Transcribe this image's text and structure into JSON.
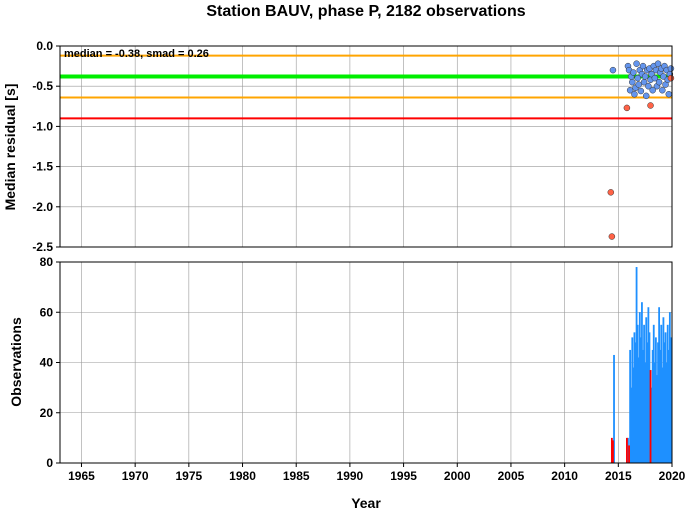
{
  "chart_data": [
    {
      "type": "scatter",
      "title": "Station BAUV, phase P, 2182 observations",
      "xlabel": "",
      "ylabel": "Median residual [s]",
      "annotation": "median = -0.38, smad = 0.26",
      "xlim": [
        1963,
        2020
      ],
      "ylim": [
        -2.5,
        0.0
      ],
      "yticks": [
        "0.0",
        "-0.5",
        "-1.0",
        "-1.5",
        "-2.0",
        "-2.5"
      ],
      "ytick_values": [
        0.0,
        -0.5,
        -1.0,
        -1.5,
        -2.0,
        -2.5
      ],
      "grid": true,
      "hlines": [
        {
          "y": -0.12,
          "color": "#ffa500"
        },
        {
          "y": -0.38,
          "color": "#00ee00"
        },
        {
          "y": -0.64,
          "color": "#ffa500"
        },
        {
          "y": -0.9,
          "color": "#ff0000"
        }
      ],
      "series": [
        {
          "color": "#6495ed",
          "points": [
            [
              2014.5,
              -0.3
            ],
            [
              2015.9,
              -0.25
            ],
            [
              2016.0,
              -0.3
            ],
            [
              2016.1,
              -0.55
            ],
            [
              2016.2,
              -0.38
            ],
            [
              2016.3,
              -0.45
            ],
            [
              2016.4,
              -0.33
            ],
            [
              2016.5,
              -0.6
            ],
            [
              2016.6,
              -0.52
            ],
            [
              2016.7,
              -0.22
            ],
            [
              2016.8,
              -0.4
            ],
            [
              2016.9,
              -0.48
            ],
            [
              2017.0,
              -0.3
            ],
            [
              2017.1,
              -0.56
            ],
            [
              2017.2,
              -0.35
            ],
            [
              2017.3,
              -0.25
            ],
            [
              2017.4,
              -0.45
            ],
            [
              2017.5,
              -0.38
            ],
            [
              2017.6,
              -0.62
            ],
            [
              2017.7,
              -0.3
            ],
            [
              2017.8,
              -0.5
            ],
            [
              2017.9,
              -0.28
            ],
            [
              2018.0,
              -0.42
            ],
            [
              2018.1,
              -0.35
            ],
            [
              2018.2,
              -0.55
            ],
            [
              2018.3,
              -0.25
            ],
            [
              2018.4,
              -0.4
            ],
            [
              2018.5,
              -0.3
            ],
            [
              2018.6,
              -0.5
            ],
            [
              2018.7,
              -0.22
            ],
            [
              2018.8,
              -0.45
            ],
            [
              2018.9,
              -0.33
            ],
            [
              2019.0,
              -0.28
            ],
            [
              2019.1,
              -0.55
            ],
            [
              2019.2,
              -0.38
            ],
            [
              2019.3,
              -0.25
            ],
            [
              2019.4,
              -0.48
            ],
            [
              2019.5,
              -0.3
            ],
            [
              2019.6,
              -0.42
            ],
            [
              2019.7,
              -0.6
            ],
            [
              2019.8,
              -0.35
            ],
            [
              2019.9,
              -0.28
            ]
          ]
        },
        {
          "color": "#ff6347",
          "points": [
            [
              2014.3,
              -1.82
            ],
            [
              2014.4,
              -2.37
            ],
            [
              2015.8,
              -0.77
            ],
            [
              2018.0,
              -0.74
            ],
            [
              2019.9,
              -0.4
            ]
          ]
        }
      ]
    },
    {
      "type": "bar",
      "title": "",
      "xlabel": "Year",
      "ylabel": "Observations",
      "xlim": [
        1963,
        2020
      ],
      "ylim": [
        0,
        80
      ],
      "xticks": [
        "1965",
        "1970",
        "1975",
        "1980",
        "1985",
        "1990",
        "1995",
        "2000",
        "2005",
        "2010",
        "2015",
        "2020"
      ],
      "xtick_values": [
        1965,
        1970,
        1975,
        1980,
        1985,
        1990,
        1995,
        2000,
        2005,
        2010,
        2015,
        2020
      ],
      "yticks": [
        "0",
        "20",
        "40",
        "60",
        "80"
      ],
      "ytick_values": [
        0,
        20,
        40,
        60,
        80
      ],
      "grid": true,
      "series": [
        {
          "color": "#1e90ff",
          "bars": [
            [
              2014.6,
              43
            ],
            [
              2015.9,
              10
            ],
            [
              2016.1,
              45
            ],
            [
              2016.2,
              30
            ],
            [
              2016.3,
              50
            ],
            [
              2016.4,
              38
            ],
            [
              2016.5,
              52
            ],
            [
              2016.6,
              48
            ],
            [
              2016.7,
              78
            ],
            [
              2016.8,
              55
            ],
            [
              2016.9,
              42
            ],
            [
              2017.0,
              60
            ],
            [
              2017.1,
              50
            ],
            [
              2017.2,
              64
            ],
            [
              2017.3,
              45
            ],
            [
              2017.4,
              55
            ],
            [
              2017.5,
              40
            ],
            [
              2017.6,
              58
            ],
            [
              2017.7,
              48
            ],
            [
              2017.8,
              62
            ],
            [
              2017.9,
              52
            ],
            [
              2018.1,
              30
            ],
            [
              2018.2,
              45
            ],
            [
              2018.3,
              55
            ],
            [
              2018.4,
              40
            ],
            [
              2018.5,
              50
            ],
            [
              2018.6,
              35
            ],
            [
              2018.7,
              48
            ],
            [
              2018.8,
              62
            ],
            [
              2018.9,
              45
            ],
            [
              2019.0,
              55
            ],
            [
              2019.1,
              38
            ],
            [
              2019.2,
              58
            ],
            [
              2019.3,
              48
            ],
            [
              2019.4,
              52
            ],
            [
              2019.5,
              40
            ],
            [
              2019.6,
              55
            ],
            [
              2019.7,
              45
            ],
            [
              2019.8,
              60
            ],
            [
              2019.9,
              50
            ]
          ]
        },
        {
          "color": "#ff0000",
          "bars": [
            [
              2014.4,
              10
            ],
            [
              2014.5,
              9
            ],
            [
              2015.8,
              10
            ],
            [
              2016.0,
              7
            ],
            [
              2018.0,
              37
            ]
          ]
        }
      ]
    }
  ]
}
